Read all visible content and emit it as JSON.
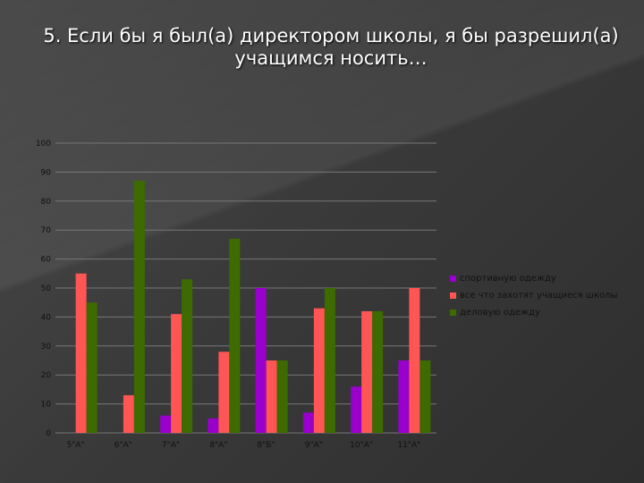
{
  "title": "5. Если бы я был(а) директором школы, я бы разрешил(а) учащимся носить…",
  "chart_data": {
    "type": "bar",
    "categories": [
      "5\"А\"",
      "6\"А\"",
      "7\"А\"",
      "8\"А\"",
      "8\"Б\"",
      "9\"А\"",
      "10\"А\"",
      "11\"А\""
    ],
    "series": [
      {
        "name": "спортивную одежду",
        "color": "#9900cc",
        "values": [
          0,
          0,
          6,
          5,
          50,
          7,
          16,
          25
        ]
      },
      {
        "name": "все что захотят учащиеся школы",
        "color": "#ff5555",
        "values": [
          55,
          13,
          41,
          28,
          25,
          43,
          42,
          50
        ]
      },
      {
        "name": "деловую одежду",
        "color": "#3d6b00",
        "values": [
          45,
          87,
          53,
          67,
          25,
          50,
          42,
          25
        ]
      }
    ],
    "yticks": [
      0,
      10,
      20,
      30,
      40,
      50,
      60,
      70,
      80,
      90,
      100
    ],
    "ylim": [
      0,
      100
    ],
    "grid": true,
    "legend": "right"
  }
}
